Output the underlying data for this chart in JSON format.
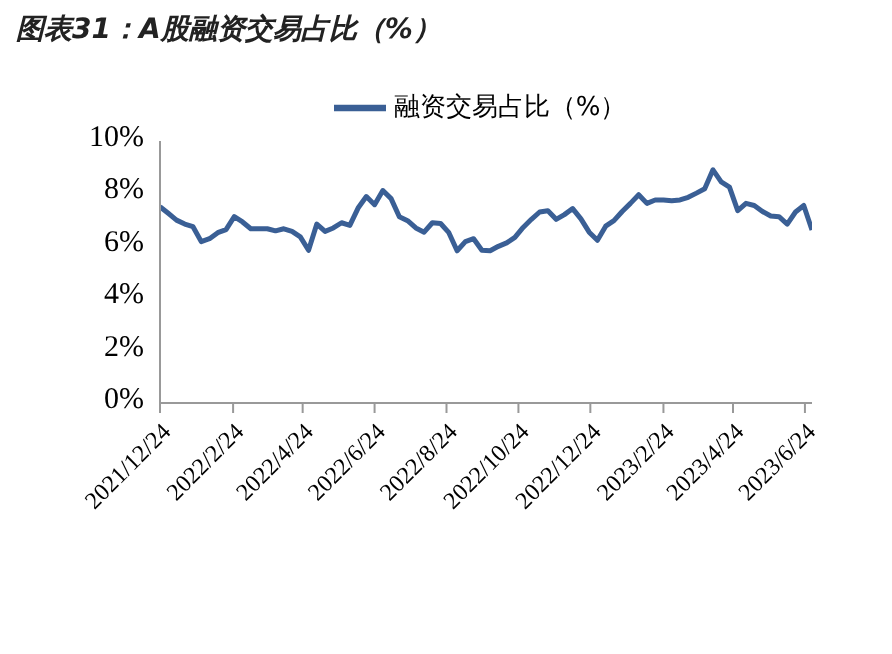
{
  "chart_data": {
    "type": "line",
    "title": "图表31：A股融资交易占比（%）",
    "x": [
      "2021-12-24",
      "2021-12-31",
      "2022-01-07",
      "2022-01-14",
      "2022-01-21",
      "2022-01-28",
      "2022-02-04",
      "2022-02-11",
      "2022-02-18",
      "2022-02-25",
      "2022-03-04",
      "2022-03-11",
      "2022-03-18",
      "2022-03-25",
      "2022-04-01",
      "2022-04-08",
      "2022-04-15",
      "2022-04-22",
      "2022-04-29",
      "2022-05-06",
      "2022-05-13",
      "2022-05-20",
      "2022-05-27",
      "2022-06-03",
      "2022-06-10",
      "2022-06-17",
      "2022-06-24",
      "2022-07-01",
      "2022-07-08",
      "2022-07-15",
      "2022-07-22",
      "2022-07-29",
      "2022-08-05",
      "2022-08-12",
      "2022-08-19",
      "2022-08-26",
      "2022-09-02",
      "2022-09-09",
      "2022-09-16",
      "2022-09-23",
      "2022-09-30",
      "2022-10-07",
      "2022-10-14",
      "2022-10-21",
      "2022-10-28",
      "2022-11-04",
      "2022-11-11",
      "2022-11-18",
      "2022-11-25",
      "2022-12-02",
      "2022-12-09",
      "2022-12-16",
      "2022-12-23",
      "2022-12-30",
      "2023-01-06",
      "2023-01-13",
      "2023-01-20",
      "2023-01-27",
      "2023-02-03",
      "2023-02-10",
      "2023-02-17",
      "2023-02-24",
      "2023-03-03",
      "2023-03-10",
      "2023-03-17",
      "2023-03-24",
      "2023-03-31",
      "2023-04-07",
      "2023-04-14",
      "2023-04-21",
      "2023-04-28",
      "2023-05-05",
      "2023-05-12",
      "2023-05-19",
      "2023-05-26",
      "2023-06-02",
      "2023-06-09",
      "2023-06-16",
      "2023-06-23",
      "2023-06-30"
    ],
    "series": [
      {
        "name": "融资交易占比（%）",
        "color": "#3a5f95",
        "values": [
          7.49,
          7.24,
          6.98,
          6.83,
          6.73,
          6.16,
          6.27,
          6.5,
          6.62,
          7.11,
          6.91,
          6.65,
          6.65,
          6.65,
          6.57,
          6.65,
          6.55,
          6.34,
          5.83,
          6.83,
          6.55,
          6.68,
          6.88,
          6.78,
          7.44,
          7.88,
          7.57,
          8.11,
          7.8,
          7.11,
          6.96,
          6.68,
          6.52,
          6.88,
          6.85,
          6.5,
          5.81,
          6.16,
          6.27,
          5.83,
          5.81,
          5.98,
          6.11,
          6.32,
          6.7,
          7.01,
          7.29,
          7.34,
          7.01,
          7.19,
          7.42,
          7.03,
          6.52,
          6.21,
          6.75,
          6.96,
          7.31,
          7.62,
          7.95,
          7.62,
          7.75,
          7.75,
          7.72,
          7.75,
          7.85,
          8.01,
          8.18,
          8.9,
          8.44,
          8.24,
          7.34,
          7.62,
          7.54,
          7.31,
          7.14,
          7.11,
          6.83,
          7.29,
          7.54,
          6.6
        ]
      }
    ],
    "xlim": [
      "2021-12-24",
      "2023-06-30"
    ],
    "xticks": [
      {
        "value": "2021-12-24",
        "label": "2021/12/24"
      },
      {
        "value": "2022-02-24",
        "label": "2022/2/24"
      },
      {
        "value": "2022-04-24",
        "label": "2022/4/24"
      },
      {
        "value": "2022-06-24",
        "label": "2022/6/24"
      },
      {
        "value": "2022-08-24",
        "label": "2022/8/24"
      },
      {
        "value": "2022-10-24",
        "label": "2022/10/24"
      },
      {
        "value": "2022-12-24",
        "label": "2022/12/24"
      },
      {
        "value": "2023-02-24",
        "label": "2023/2/24"
      },
      {
        "value": "2023-04-24",
        "label": "2023/4/24"
      },
      {
        "value": "2023-06-24",
        "label": "2023/6/24"
      }
    ],
    "ylim": [
      0,
      10
    ],
    "yticks": [
      {
        "value": 0,
        "label": "0%"
      },
      {
        "value": 2,
        "label": "2%"
      },
      {
        "value": 4,
        "label": "4%"
      },
      {
        "value": 6,
        "label": "6%"
      },
      {
        "value": 8,
        "label": "8%"
      },
      {
        "value": 10,
        "label": "10%"
      }
    ],
    "grid": false,
    "legend": "top",
    "marker": "none",
    "line_style": "solid"
  }
}
